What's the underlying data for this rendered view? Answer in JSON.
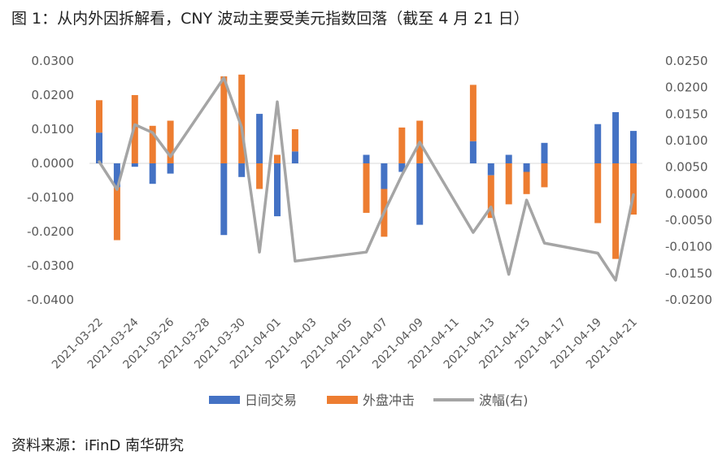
{
  "title": "图 1：从内外因拆解看，CNY 波动主要受美元指数回落（截至 4 月 21 日）",
  "source": "资料来源：iFinD  南华研究",
  "colors": {
    "blue": "#4472C4",
    "orange": "#ED7D31",
    "gray": "#A5A5A5",
    "axis": "#D9D9D9"
  },
  "chart_data": {
    "type": "bar",
    "title": "图 1：从内外因拆解看，CNY 波动主要受美元指数回落（截至 4 月 21 日）",
    "x_tick_labels": [
      "2021-03-22",
      "2021-03-24",
      "2021-03-26",
      "2021-03-28",
      "2021-03-30",
      "2021-04-01",
      "2021-04-03",
      "2021-04-05",
      "2021-04-07",
      "2021-04-09",
      "2021-04-11",
      "2021-04-13",
      "2021-04-15",
      "2021-04-17",
      "2021-04-19",
      "2021-04-21"
    ],
    "y_left_ticks": [
      "0.0300",
      "0.0200",
      "0.0100",
      "0.0000",
      "-0.0100",
      "-0.0200",
      "-0.0300",
      "-0.0400"
    ],
    "y_right_ticks": [
      "0.0250",
      "0.0200",
      "0.0150",
      "0.0100",
      "0.0050",
      "0.0000",
      "-0.0050",
      "-0.0100",
      "-0.0150",
      "-0.0200"
    ],
    "ylim_left": [
      -0.04,
      0.03
    ],
    "ylim_right": [
      -0.02,
      0.025
    ],
    "legend_position": "bottom",
    "series": [
      {
        "name": "日间交易",
        "type": "bar",
        "axis": "left",
        "color": "#4472C4",
        "data": [
          {
            "date": "2021-03-22",
            "value": 0.009
          },
          {
            "date": "2021-03-23",
            "value": -0.007
          },
          {
            "date": "2021-03-24",
            "value": -0.001
          },
          {
            "date": "2021-03-25",
            "value": -0.006
          },
          {
            "date": "2021-03-26",
            "value": -0.003
          },
          {
            "date": "2021-03-29",
            "value": -0.021
          },
          {
            "date": "2021-03-30",
            "value": -0.004
          },
          {
            "date": "2021-03-31",
            "value": 0.0145
          },
          {
            "date": "2021-04-01",
            "value": -0.0155
          },
          {
            "date": "2021-04-02",
            "value": 0.0035
          },
          {
            "date": "2021-04-06",
            "value": 0.0025
          },
          {
            "date": "2021-04-07",
            "value": -0.0075
          },
          {
            "date": "2021-04-08",
            "value": -0.0025
          },
          {
            "date": "2021-04-09",
            "value": -0.018
          },
          {
            "date": "2021-04-12",
            "value": 0.0065
          },
          {
            "date": "2021-04-13",
            "value": -0.0035
          },
          {
            "date": "2021-04-14",
            "value": 0.0025
          },
          {
            "date": "2021-04-15",
            "value": -0.0025
          },
          {
            "date": "2021-04-16",
            "value": 0.006
          },
          {
            "date": "2021-04-19",
            "value": 0.0115
          },
          {
            "date": "2021-04-20",
            "value": 0.015
          },
          {
            "date": "2021-04-21",
            "value": 0.0095
          }
        ]
      },
      {
        "name": "外盘冲击",
        "type": "bar",
        "axis": "left",
        "color": "#ED7D31",
        "data": [
          {
            "date": "2021-03-22",
            "value": 0.0095
          },
          {
            "date": "2021-03-23",
            "value": -0.0155
          },
          {
            "date": "2021-03-24",
            "value": 0.02
          },
          {
            "date": "2021-03-25",
            "value": 0.011
          },
          {
            "date": "2021-03-26",
            "value": 0.0125
          },
          {
            "date": "2021-03-29",
            "value": 0.0255
          },
          {
            "date": "2021-03-30",
            "value": 0.026
          },
          {
            "date": "2021-03-31",
            "value": -0.0075
          },
          {
            "date": "2021-04-01",
            "value": 0.0025
          },
          {
            "date": "2021-04-02",
            "value": 0.0065
          },
          {
            "date": "2021-04-06",
            "value": -0.0145
          },
          {
            "date": "2021-04-07",
            "value": -0.014
          },
          {
            "date": "2021-04-08",
            "value": 0.0105
          },
          {
            "date": "2021-04-09",
            "value": 0.0125
          },
          {
            "date": "2021-04-12",
            "value": 0.0165
          },
          {
            "date": "2021-04-13",
            "value": -0.0125
          },
          {
            "date": "2021-04-14",
            "value": -0.012
          },
          {
            "date": "2021-04-15",
            "value": -0.0065
          },
          {
            "date": "2021-04-16",
            "value": -0.007
          },
          {
            "date": "2021-04-19",
            "value": -0.0175
          },
          {
            "date": "2021-04-20",
            "value": -0.028
          },
          {
            "date": "2021-04-21",
            "value": -0.015
          }
        ]
      },
      {
        "name": "波幅(右)",
        "type": "line",
        "axis": "right",
        "color": "#A5A5A5",
        "data": [
          {
            "date": "2021-03-22",
            "value": 0.006
          },
          {
            "date": "2021-03-23",
            "value": 0.0008
          },
          {
            "date": "2021-03-24",
            "value": 0.013
          },
          {
            "date": "2021-03-25",
            "value": 0.0115
          },
          {
            "date": "2021-03-26",
            "value": 0.007
          },
          {
            "date": "2021-03-29",
            "value": 0.0218
          },
          {
            "date": "2021-03-30",
            "value": 0.0125
          },
          {
            "date": "2021-03-31",
            "value": -0.011
          },
          {
            "date": "2021-04-01",
            "value": 0.0173
          },
          {
            "date": "2021-04-02",
            "value": -0.0127
          },
          {
            "date": "2021-04-06",
            "value": -0.011
          },
          {
            "date": "2021-04-07",
            "value": -0.0035
          },
          {
            "date": "2021-04-08",
            "value": 0.0035
          },
          {
            "date": "2021-04-09",
            "value": 0.0097
          },
          {
            "date": "2021-04-12",
            "value": -0.0073
          },
          {
            "date": "2021-04-13",
            "value": -0.0025
          },
          {
            "date": "2021-04-14",
            "value": -0.0152
          },
          {
            "date": "2021-04-15",
            "value": -0.0012
          },
          {
            "date": "2021-04-16",
            "value": -0.0093
          },
          {
            "date": "2021-04-19",
            "value": -0.0112
          },
          {
            "date": "2021-04-20",
            "value": -0.0163
          },
          {
            "date": "2021-04-21",
            "value": -0.0002
          }
        ]
      }
    ]
  }
}
